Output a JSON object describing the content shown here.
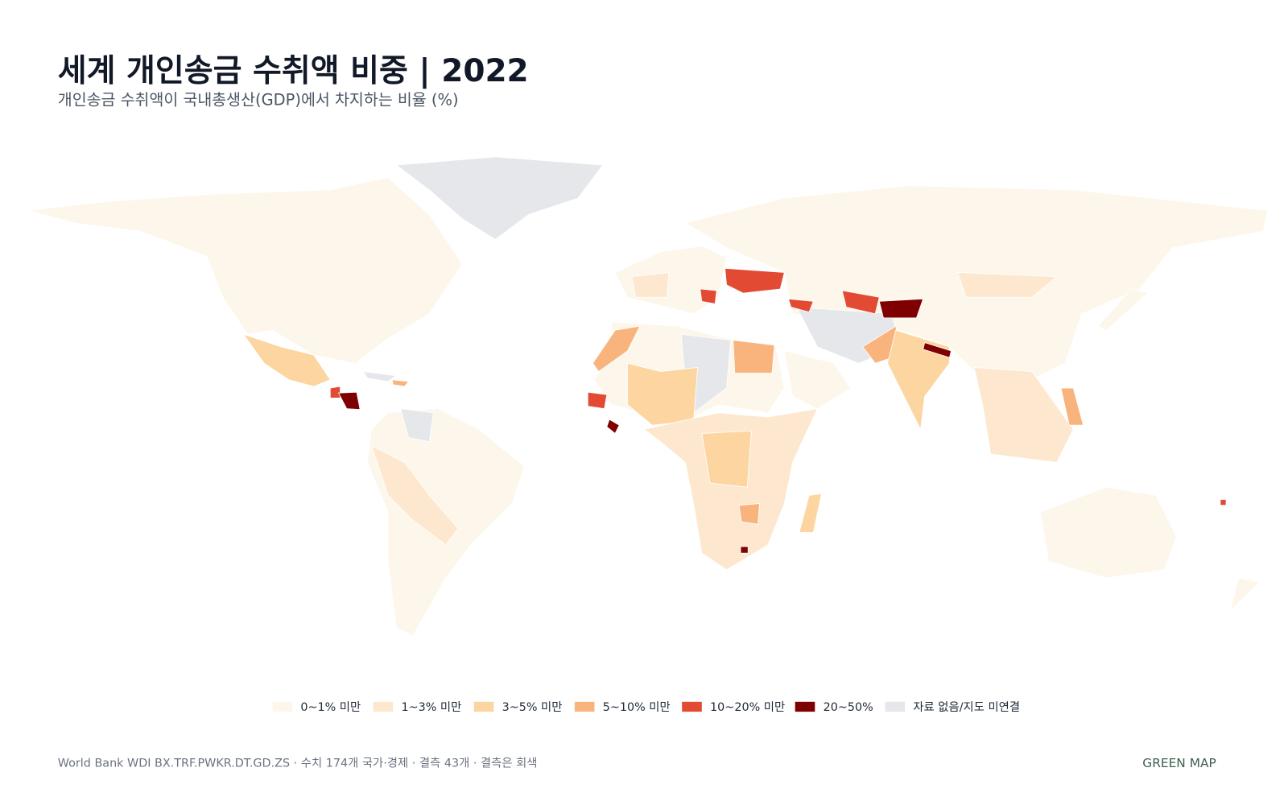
{
  "header": {
    "title": "세계 개인송금 수취액 비중 | 2022",
    "subtitle": "개인송금 수취액이 국내총생산(GDP)에서 차지하는 비율 (%)"
  },
  "legend": [
    {
      "label": "0~1% 미만",
      "color": "#fdf6ea"
    },
    {
      "label": "1~3% 미만",
      "color": "#fde8cf"
    },
    {
      "label": "3~5% 미만",
      "color": "#fcd5a0"
    },
    {
      "label": "5~10% 미만",
      "color": "#f9b47e"
    },
    {
      "label": "10~20% 미만",
      "color": "#e34a33"
    },
    {
      "label": "20~50%",
      "color": "#7f0000"
    },
    {
      "label": "자료 없음/지도 미연결",
      "color": "#e5e7eb"
    }
  ],
  "footer": {
    "source": "World Bank WDI BX.TRF.PWKR.DT.GD.ZS · 수치 174개 국가·경제 · 결측 43개 · 결측은 회색",
    "brand": "GREEN MAP"
  }
}
